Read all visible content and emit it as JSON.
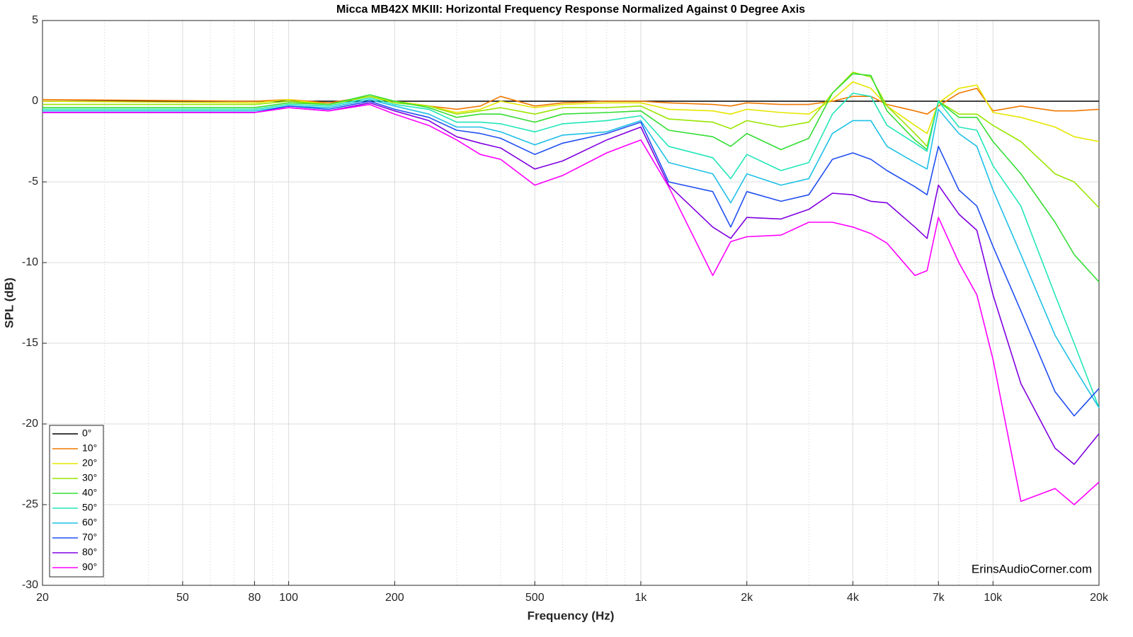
{
  "chart_data": {
    "type": "line",
    "title": "Micca MB42X MKIII: Horizontal Frequency Response Normalized Against 0 Degree Axis",
    "xlabel": "Frequency (Hz)",
    "ylabel": "SPL (dB)",
    "watermark": "ErinsAudioCorner.com",
    "xscale": "log",
    "grid": true,
    "legend": "lower left",
    "xlim": [
      20,
      20000
    ],
    "ylim": [
      -30,
      5
    ],
    "xticks": [
      20,
      50,
      80,
      100,
      200,
      500,
      {
        "value": 1000,
        "label": "1k"
      },
      {
        "value": 2000,
        "label": "2k"
      },
      {
        "value": 4000,
        "label": "4k"
      },
      {
        "value": 7000,
        "label": "7k"
      },
      {
        "value": 10000,
        "label": "10k"
      },
      {
        "value": 20000,
        "label": "20k"
      }
    ],
    "xminorticks": [
      30,
      40,
      60,
      70,
      90,
      300,
      400,
      600,
      700,
      800,
      900,
      3000,
      5000,
      6000,
      8000,
      9000
    ],
    "yticks": [
      5,
      0,
      -5,
      -10,
      -15,
      -20,
      -25,
      -30
    ],
    "x": [
      20,
      80,
      100,
      130,
      170,
      200,
      250,
      300,
      350,
      400,
      500,
      600,
      800,
      1000,
      1200,
      1600,
      1800,
      2000,
      2500,
      3000,
      3500,
      4000,
      4500,
      5000,
      6000,
      6500,
      7000,
      8000,
      9000,
      10000,
      12000,
      15000,
      17000,
      20000
    ],
    "series": [
      {
        "name": "0°",
        "color": "#000000",
        "values": [
          0,
          0,
          0,
          0,
          0,
          0,
          0,
          0,
          0,
          0,
          0,
          0,
          0,
          0,
          0,
          0,
          0,
          0,
          0,
          0,
          0,
          0,
          0,
          0,
          0,
          0,
          0,
          0,
          0,
          0,
          0,
          0,
          0,
          0
        ]
      },
      {
        "name": "10°",
        "color": "#f07800",
        "values": [
          0.1,
          0,
          0.1,
          -0.1,
          0.3,
          0,
          -0.3,
          -0.5,
          -0.3,
          0.3,
          -0.3,
          -0.1,
          0,
          0,
          -0.1,
          -0.2,
          -0.3,
          -0.1,
          -0.2,
          -0.2,
          0,
          0.3,
          0.3,
          -0.2,
          -0.6,
          -0.8,
          -0.3,
          0.5,
          0.8,
          -0.6,
          -0.3,
          -0.6,
          -0.6,
          -0.5
        ]
      },
      {
        "name": "20°",
        "color": "#e6e600",
        "values": [
          0,
          -0.1,
          0.1,
          -0.2,
          0.3,
          0,
          -0.3,
          -0.7,
          -0.5,
          0,
          -0.4,
          -0.2,
          -0.1,
          -0.1,
          -0.5,
          -0.6,
          -0.8,
          -0.5,
          -0.7,
          -0.8,
          0.1,
          1.2,
          0.8,
          -0.3,
          -1.5,
          -2,
          -0.1,
          0.8,
          1.0,
          -0.7,
          -1.0,
          -1.6,
          -2.2,
          -2.5
        ]
      },
      {
        "name": "30°",
        "color": "#99e600",
        "values": [
          -0.2,
          -0.2,
          0,
          -0.2,
          0.3,
          -0.1,
          -0.3,
          -0.8,
          -0.6,
          -0.4,
          -0.8,
          -0.4,
          -0.4,
          -0.3,
          -1.1,
          -1.3,
          -1.7,
          -1.2,
          -1.6,
          -1.3,
          0.5,
          1.8,
          1.5,
          -0.3,
          -2,
          -2.8,
          0,
          -0.8,
          -0.8,
          -1.5,
          -2.5,
          -4.5,
          -5,
          -6.6
        ]
      },
      {
        "name": "40°",
        "color": "#33dd33",
        "values": [
          -0.4,
          -0.4,
          -0.1,
          -0.2,
          0.4,
          0,
          -0.4,
          -1.0,
          -0.8,
          -0.8,
          -1.3,
          -0.8,
          -0.7,
          -0.6,
          -1.8,
          -2.2,
          -2.8,
          -2.0,
          -3.0,
          -2.3,
          0.5,
          1.7,
          1.6,
          -0.6,
          -2.4,
          -3,
          0,
          -1.0,
          -1.0,
          -2.5,
          -4.5,
          -7.5,
          -9.5,
          -11.2
        ]
      },
      {
        "name": "50°",
        "color": "#22e6b8",
        "values": [
          -0.5,
          -0.5,
          -0.2,
          -0.3,
          0.2,
          -0.2,
          -0.5,
          -1.3,
          -1.3,
          -1.4,
          -1.9,
          -1.4,
          -1.2,
          -0.9,
          -2.8,
          -3.5,
          -4.8,
          -3.3,
          -4.3,
          -3.8,
          -0.8,
          0.5,
          0.3,
          -1.5,
          -2.6,
          -3.1,
          0,
          -1.6,
          -1.8,
          -4,
          -6.5,
          -12,
          -15,
          -19
        ]
      },
      {
        "name": "60°",
        "color": "#1ec0e6",
        "values": [
          -0.6,
          -0.6,
          -0.3,
          -0.4,
          0.1,
          -0.3,
          -0.8,
          -1.6,
          -1.6,
          -1.9,
          -2.7,
          -2.1,
          -1.9,
          -1.2,
          -3.8,
          -4.5,
          -6.3,
          -4.5,
          -5.2,
          -4.8,
          -2,
          -1.2,
          -1.2,
          -2.8,
          -3.8,
          -4.2,
          -0.5,
          -2,
          -2.8,
          -5.5,
          -9.5,
          -14.5,
          -16.5,
          -19
        ]
      },
      {
        "name": "70°",
        "color": "#2050f0",
        "values": [
          -0.7,
          -0.7,
          -0.3,
          -0.5,
          0,
          -0.5,
          -1.0,
          -1.8,
          -2.0,
          -2.3,
          -3.3,
          -2.6,
          -2.0,
          -1.3,
          -5,
          -5.6,
          -7.8,
          -5.6,
          -6.2,
          -5.8,
          -3.6,
          -3.2,
          -3.6,
          -4.3,
          -5.3,
          -5.8,
          -2.8,
          -5.5,
          -6.5,
          -9,
          -13,
          -18,
          -19.5,
          -17.8
        ]
      },
      {
        "name": "80°",
        "color": "#8000e0",
        "values": [
          -0.7,
          -0.7,
          -0.4,
          -0.6,
          -0.1,
          -0.6,
          -1.2,
          -2.2,
          -2.6,
          -2.9,
          -4.2,
          -3.7,
          -2.4,
          -1.6,
          -5.2,
          -7.8,
          -8.5,
          -7.2,
          -7.3,
          -6.7,
          -5.7,
          -5.8,
          -6.2,
          -6.3,
          -7.8,
          -8.5,
          -5.2,
          -7,
          -8,
          -12,
          -17.5,
          -21.5,
          -22.5,
          -20.6
        ]
      },
      {
        "name": "90°",
        "color": "#ff00ff",
        "values": [
          -0.7,
          -0.7,
          -0.4,
          -0.6,
          -0.2,
          -0.8,
          -1.5,
          -2.4,
          -3.3,
          -3.6,
          -5.2,
          -4.6,
          -3.2,
          -2.4,
          -5.3,
          -10.8,
          -8.7,
          -8.4,
          -8.3,
          -7.5,
          -7.5,
          -7.8,
          -8.2,
          -8.8,
          -10.8,
          -10.5,
          -7.2,
          -10,
          -12,
          -16,
          -24.8,
          -24,
          -25,
          -23.6
        ]
      }
    ]
  }
}
